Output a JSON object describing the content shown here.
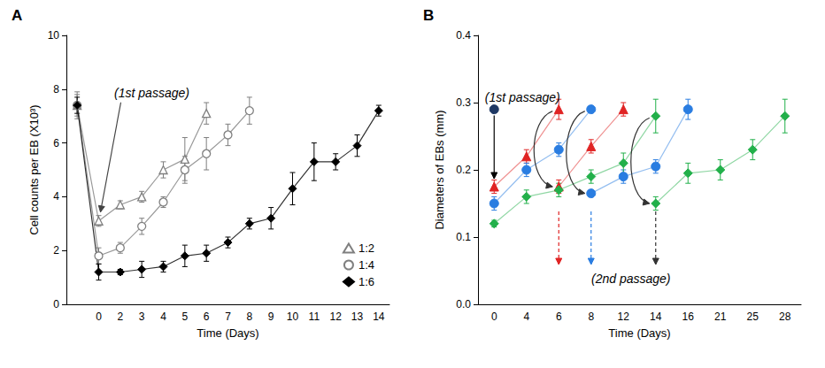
{
  "chart_data": [
    {
      "type": "line",
      "title": "A",
      "x_label": "Time (Days)",
      "y_label": "Cell counts per EB (X10³)",
      "categories": [
        null,
        "0",
        "2",
        "3",
        "4",
        "5",
        "6",
        "7",
        "8",
        "9",
        "10",
        "11",
        "12",
        "13",
        "14"
      ],
      "ylim": [
        0,
        10
      ],
      "yticks": [
        0,
        2,
        4,
        6,
        8,
        10
      ],
      "grid": false,
      "legend": "lower right",
      "annotations": [
        "(1st passage)"
      ],
      "series": [
        {
          "name": "1:2",
          "color": "#7f7f7f",
          "marker": "open-triangle",
          "values": [
            7.4,
            3.1,
            3.7,
            4.0,
            5.0,
            5.4,
            7.1,
            null,
            null,
            null,
            null,
            null,
            null,
            null,
            null
          ],
          "errors": [
            0.5,
            0.2,
            0.15,
            0.2,
            0.3,
            0.8,
            0.4,
            null,
            null,
            null,
            null,
            null,
            null,
            null,
            null
          ]
        },
        {
          "name": "1:4",
          "color": "#7f7f7f",
          "marker": "open-circle",
          "values": [
            7.4,
            1.8,
            2.1,
            2.9,
            3.8,
            5.0,
            5.6,
            6.3,
            7.2,
            null,
            null,
            null,
            null,
            null,
            null
          ],
          "errors": [
            0.4,
            0.3,
            0.2,
            0.3,
            0.2,
            0.5,
            0.6,
            0.4,
            0.5,
            null,
            null,
            null,
            null,
            null,
            null
          ]
        },
        {
          "name": "1:6",
          "color": "#000000",
          "marker": "diamond",
          "values": [
            7.4,
            1.2,
            1.2,
            1.3,
            1.4,
            1.8,
            1.9,
            2.3,
            3.0,
            3.2,
            4.3,
            5.3,
            5.3,
            5.9,
            7.2
          ],
          "errors": [
            0.3,
            0.3,
            0.1,
            0.3,
            0.2,
            0.4,
            0.3,
            0.2,
            0.2,
            0.4,
            0.6,
            0.7,
            0.3,
            0.4,
            0.2
          ]
        }
      ]
    },
    {
      "type": "line",
      "title": "B",
      "x_label": "Time (Days)",
      "y_label": "Diameters of EBs (mm)",
      "categories": [
        "0",
        "4",
        "6",
        "8",
        "12",
        "14",
        "16",
        "21",
        "25",
        "28"
      ],
      "ylim": [
        0,
        0.4
      ],
      "yticks": [
        {
          "value": 0,
          "label": "0.0"
        },
        {
          "value": 0.1,
          "label": "0.1"
        },
        {
          "value": 0.2,
          "label": "0.2"
        },
        {
          "value": 0.3,
          "label": "0.3"
        },
        {
          "value": 0.4,
          "label": "0.4"
        }
      ],
      "grid": false,
      "annotations": [
        "(1st passage)",
        "(2nd passage)"
      ],
      "series": [
        {
          "color": "#1f3864",
          "marker": "circle",
          "values": [
            0.29,
            null,
            null,
            null,
            null,
            null,
            null,
            null,
            null,
            null
          ],
          "errors": [
            0.005,
            null,
            null,
            null,
            null,
            null,
            null,
            null,
            null,
            null
          ]
        },
        {
          "color": "#e02424",
          "marker": "triangle",
          "values": [
            0.175,
            0.22,
            0.29,
            null,
            null,
            null,
            null,
            null,
            null,
            null
          ],
          "errors": [
            0.01,
            0.01,
            0.015,
            null,
            null,
            null,
            null,
            null,
            null,
            null
          ]
        },
        {
          "color": "#e02424",
          "marker": "triangle",
          "values": [
            null,
            null,
            0.175,
            0.235,
            0.29,
            null,
            null,
            null,
            null,
            null
          ],
          "errors": [
            null,
            null,
            0.01,
            0.01,
            0.01,
            null,
            null,
            null,
            null,
            null
          ]
        },
        {
          "color": "#2a7de1",
          "marker": "circle",
          "values": [
            0.15,
            0.2,
            0.23,
            0.29,
            null,
            null,
            null,
            null,
            null,
            null
          ],
          "errors": [
            0.01,
            0.01,
            0.01,
            0.005,
            null,
            null,
            null,
            null,
            null,
            null
          ]
        },
        {
          "color": "#2a7de1",
          "marker": "circle",
          "values": [
            null,
            null,
            null,
            0.165,
            0.19,
            0.205,
            0.29,
            null,
            null,
            null
          ],
          "errors": [
            null,
            null,
            null,
            0.005,
            0.01,
            0.01,
            0.015,
            null,
            null,
            null
          ]
        },
        {
          "color": "#22b04a",
          "marker": "diamond",
          "values": [
            0.12,
            0.16,
            0.17,
            0.19,
            0.21,
            0.28,
            null,
            null,
            null,
            null
          ],
          "errors": [
            0.005,
            0.01,
            0.01,
            0.01,
            0.015,
            0.025,
            null,
            null,
            null,
            null
          ]
        },
        {
          "color": "#22b04a",
          "marker": "diamond",
          "values": [
            null,
            null,
            null,
            null,
            null,
            0.15,
            0.195,
            0.2,
            0.23,
            0.28
          ],
          "errors": [
            null,
            null,
            null,
            null,
            null,
            0.01,
            0.015,
            0.015,
            0.015,
            0.025
          ]
        }
      ]
    }
  ]
}
